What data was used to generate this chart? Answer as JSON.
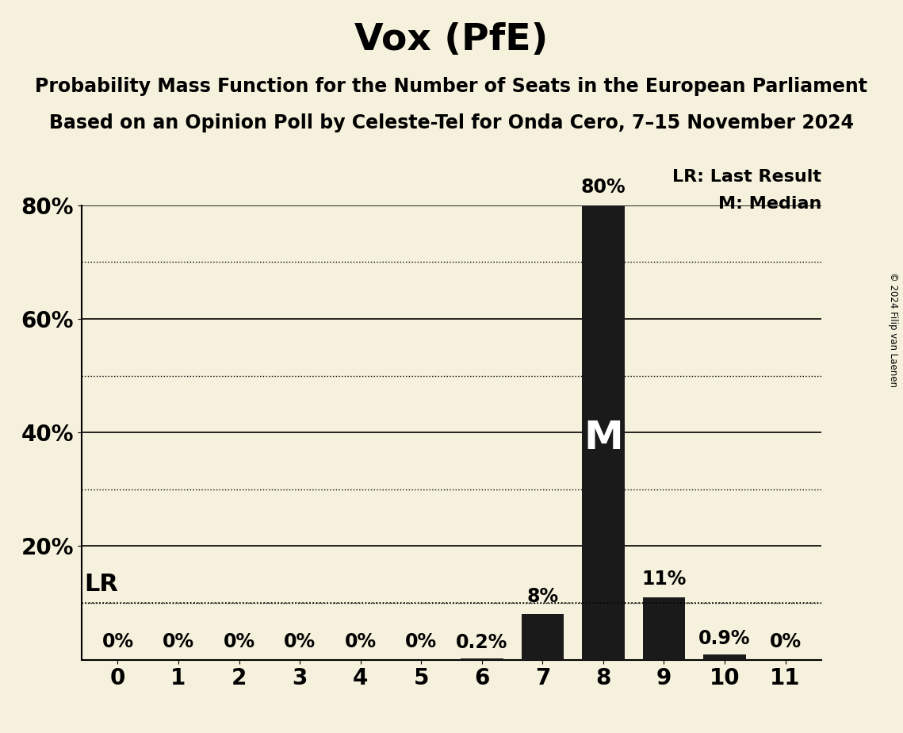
{
  "title": "Vox (PfE)",
  "subtitle1": "Probability Mass Function for the Number of Seats in the European Parliament",
  "subtitle2": "Based on an Opinion Poll by Celeste-Tel for Onda Cero, 7–15 November 2024",
  "copyright": "© 2024 Filip van Laenen",
  "categories": [
    0,
    1,
    2,
    3,
    4,
    5,
    6,
    7,
    8,
    9,
    10,
    11
  ],
  "values": [
    0.0,
    0.0,
    0.0,
    0.0,
    0.0,
    0.0,
    0.2,
    8.0,
    80.0,
    11.0,
    0.9,
    0.0
  ],
  "bar_labels": [
    "0%",
    "0%",
    "0%",
    "0%",
    "0%",
    "0%",
    "0.2%",
    "8%",
    "80%",
    "11%",
    "0.9%",
    "0%"
  ],
  "bar_color": "#1a1a1a",
  "background_color": "#f5f1dc",
  "lr_value": 10.0,
  "lr_label": "LR",
  "median_seat": 8,
  "median_label": "M",
  "legend_lr": "LR: Last Result",
  "legend_m": "M: Median",
  "ylim": [
    0,
    80
  ],
  "yticks": [
    20,
    40,
    60,
    80
  ],
  "ytick_labels": [
    "20%",
    "40%",
    "60%",
    "80%"
  ],
  "solid_gridlines": [
    20,
    40,
    60,
    80
  ],
  "dotted_gridlines": [
    10,
    30,
    50,
    70
  ],
  "title_fontsize": 34,
  "subtitle_fontsize": 17,
  "legend_fontsize": 16,
  "tick_fontsize": 20,
  "bar_label_fontsize": 17,
  "lr_label_fontsize": 22,
  "median_fontsize": 36
}
